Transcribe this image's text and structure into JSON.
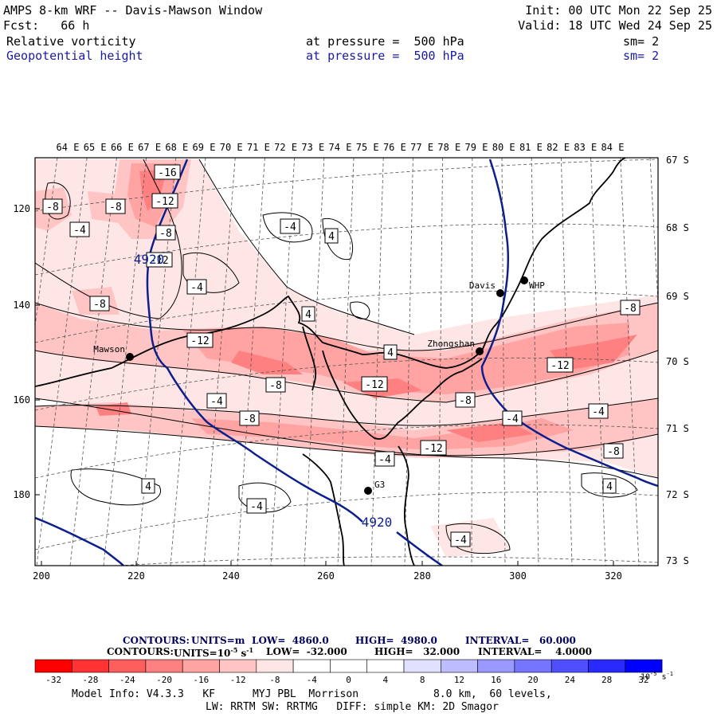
{
  "header": {
    "line1_left": "AMPS 8-km WRF -- Davis-Mawson Window",
    "line1_right": "Init: 00 UTC Mon 22 Sep 25",
    "line2_left": "Fcst:   66 h",
    "line2_right": "Valid: 18 UTC Wed 24 Sep 25",
    "field1_name": "Relative vorticity",
    "field1_level": "at pressure =  500 hPa",
    "field1_sm": "sm= 2",
    "field2_name": "Geopotential height",
    "field2_level": "at pressure =  500 hPa",
    "field2_sm": "sm= 2"
  },
  "map": {
    "lon_labels": [
      "64 E",
      "65 E",
      "66 E",
      "67 E",
      "68 E",
      "69 E",
      "70 E",
      "71 E",
      "72 E",
      "73 E",
      "74 E",
      "75 E",
      "76 E",
      "77 E",
      "78 E",
      "79 E",
      "80 E",
      "81 E",
      "82 E",
      "83 E",
      "84 E"
    ],
    "lat_labels": [
      "67 S",
      "68 S",
      "69 S",
      "70 S",
      "71 S",
      "72 S",
      "73 S"
    ],
    "x_ticks": [
      "200",
      "220",
      "240",
      "260",
      "280",
      "300",
      "320"
    ],
    "y_ticks": [
      "120",
      "140",
      "160",
      "180"
    ],
    "stations": [
      {
        "name": "Mawson"
      },
      {
        "name": "Davis"
      },
      {
        "name": "WHP"
      },
      {
        "name": "Zhongshan"
      },
      {
        "name": "G3"
      }
    ],
    "height_labels": [
      "4920",
      "4920"
    ],
    "vort_labels": [
      "-16",
      "-12",
      "-8",
      "-8",
      "-4",
      "-8",
      "-4",
      "4",
      "-8",
      "-4",
      "4",
      "-12",
      "-8",
      "4",
      "-12",
      "-8",
      "-4",
      "-8",
      "-12",
      "-8",
      "-4",
      "-8",
      "-4",
      "-12",
      "-4",
      "4",
      "-4",
      "4",
      "-4",
      "-12"
    ],
    "colors": {
      "contour": "#000000",
      "height": "#0d1f8c",
      "neg1": "#ffe6e6",
      "neg2": "#ffc4c4",
      "neg3": "#ffa3a3",
      "neg4": "#ff8080"
    }
  },
  "footer": {
    "contours1_label": "CONTOURS:",
    "contours1_units": "UNITS=m",
    "contours1_low": "LOW=  4860.0",
    "contours1_high": "HIGH=  4980.0",
    "contours1_interval": "INTERVAL=   60.000",
    "contours2_label": "CONTOURS:",
    "contours2_units": "UNITS=10",
    "contours2_units_exp": "-5",
    "contours2_units_suffix": " s",
    "contours2_units_exp2": "-1",
    "contours2_low": "LOW=  -32.000",
    "contours2_high": "HIGH=   32.000",
    "contours2_interval": "INTERVAL=    4.0000",
    "colorbar_labels": [
      "-32",
      "-28",
      "-24",
      "-20",
      "-16",
      "-12",
      "-8",
      "-4",
      "0",
      "4",
      "8",
      "12",
      "16",
      "20",
      "24",
      "28",
      "32"
    ],
    "colorbar_unit": "10",
    "colorbar_unit_exp": "-5",
    "colorbar_unit_exp2": "s",
    "colorbar_unit_exp3": "-1",
    "colorbar_colors": [
      "#ff0000",
      "#ff3333",
      "#ff5e5e",
      "#ff8080",
      "#ffa3a3",
      "#ffc4c4",
      "#ffe6e6",
      "#ffffff",
      "#ffffff",
      "#ffffff",
      "#e0e0ff",
      "#bcbcff",
      "#9999ff",
      "#7575ff",
      "#4f4fff",
      "#2a2aff",
      "#0000ff"
    ],
    "model_info_1": "Model Info: V4.3.3   KF      MYJ PBL  Morrison            8.0 km,  60 levels,",
    "model_info_2": "LW: RRTM SW: RRTMG   DIFF: simple KM: 2D Smagor"
  }
}
